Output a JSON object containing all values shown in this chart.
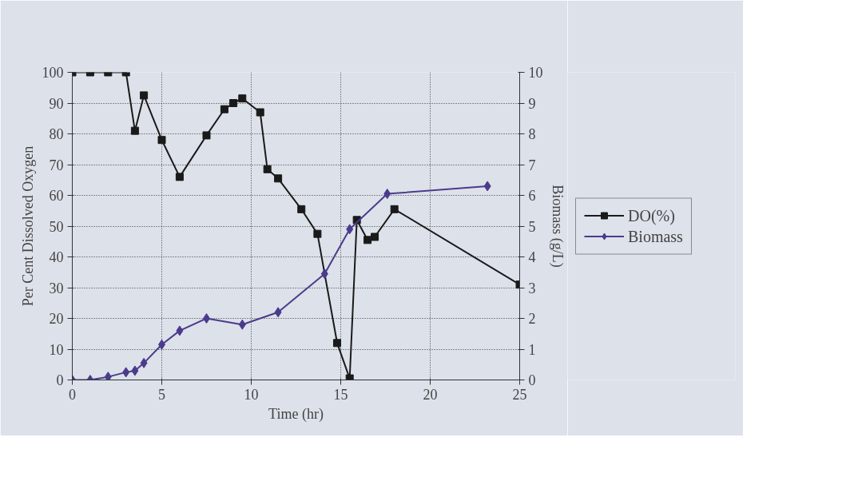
{
  "chart_data": {
    "type": "line",
    "xlabel": "Time (hr)",
    "ylabel": "Per Cent Dissolved Oxygen",
    "y2label": "Biomass (g/L)",
    "xlim": [
      0,
      25
    ],
    "xticks": [
      0,
      5,
      10,
      15,
      20,
      25
    ],
    "ylim": [
      0,
      100
    ],
    "yticks": [
      0,
      10,
      20,
      30,
      40,
      50,
      60,
      70,
      80,
      90,
      100
    ],
    "y2lim": [
      0,
      10
    ],
    "y2ticks": [
      0,
      1,
      2,
      3,
      4,
      5,
      6,
      7,
      8,
      9,
      10
    ],
    "grid": true,
    "legend": "right",
    "line_style": "solid",
    "series": [
      {
        "name": "DO(%)",
        "color": "#1a1a1a",
        "marker": "square",
        "x": [
          0,
          1,
          2,
          3,
          3.5,
          4,
          5,
          6,
          7.5,
          8.5,
          9,
          9.5,
          10.5,
          10.9,
          11.5,
          12.8,
          13.7,
          14.8,
          15.5,
          15.9,
          16.5,
          16.9,
          18,
          25
        ],
        "values": [
          100,
          100,
          100,
          100,
          81,
          92.5,
          78,
          66,
          79.5,
          88,
          90,
          91.5,
          87,
          68.5,
          65.5,
          55.5,
          47.5,
          12,
          0.5,
          52,
          45.5,
          46.5,
          55.5,
          31
        ]
      },
      {
        "name": "Biomass",
        "color": "#4b3b8c",
        "marker": "diamond",
        "axis": "y2",
        "x": [
          0,
          1,
          2,
          3,
          3.5,
          4,
          5,
          6,
          7.5,
          9.5,
          11.5,
          14.1,
          15.5,
          17.6,
          23.2
        ],
        "values": [
          0,
          0,
          0.1,
          0.25,
          0.3,
          0.55,
          1.15,
          1.6,
          2.0,
          1.8,
          2.2,
          3.45,
          4.9,
          6.05,
          6.3
        ]
      }
    ]
  }
}
